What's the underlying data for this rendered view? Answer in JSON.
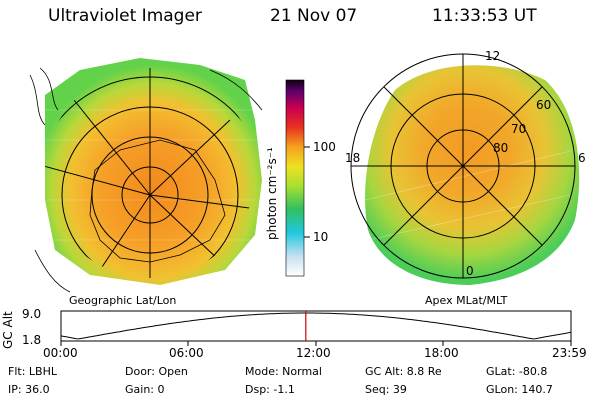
{
  "header": {
    "instrument": "Ultraviolet Imager",
    "date": "21 Nov 07",
    "time": "11:33:53 UT"
  },
  "colorbar": {
    "unit_label": "photon cm⁻²s⁻¹",
    "tick_100": "100",
    "tick_10": "10",
    "scale": "log"
  },
  "left_map": {
    "caption": "Geographic Lat/Lon"
  },
  "right_map": {
    "caption": "Apex MLat/MLT",
    "mlt_12": "12",
    "mlt_18": "18",
    "mlt_6": "6",
    "mlt_0": "0",
    "lat_80": "80",
    "lat_70": "70",
    "lat_60": "60"
  },
  "altitude_plot": {
    "ylabel": "GC Alt",
    "ymax": "9.0",
    "ymin": "1.8",
    "x_ticks": [
      "00:00",
      "06:00",
      "12:00",
      "18:00",
      "23:59"
    ],
    "current_time_fraction": 0.48
  },
  "info": {
    "flt": "Flt: LBHL",
    "ip": "IP: 36.0",
    "door": "Door: Open",
    "gain": "Gain:  0",
    "mode": "Mode: Normal",
    "dsp": "Dsp:    -1.1",
    "gc_alt": "GC Alt: 8.8 Re",
    "seq": "Seq: 39",
    "glat": "GLat: -80.8",
    "glon": "GLon: 140.7"
  },
  "colors": {
    "red_marker": "#cc0000"
  }
}
